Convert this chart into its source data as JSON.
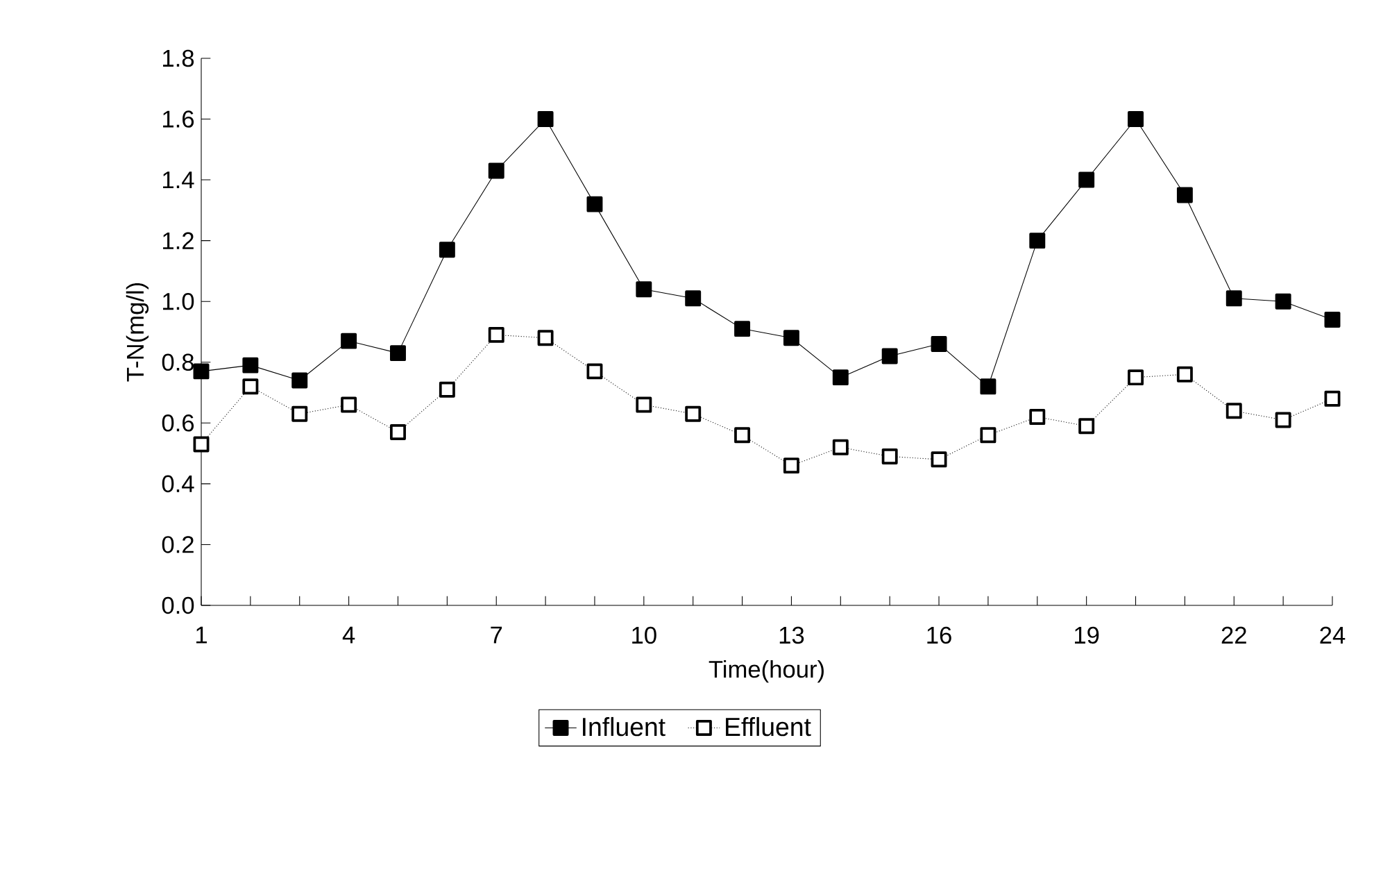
{
  "chart_data": {
    "type": "line",
    "xlabel": "Time(hour)",
    "ylabel": "T-N(mg/l)",
    "x": [
      1,
      2,
      3,
      4,
      5,
      6,
      7,
      8,
      9,
      10,
      11,
      12,
      13,
      14,
      15,
      16,
      17,
      18,
      19,
      20,
      21,
      22,
      23,
      24
    ],
    "series": [
      {
        "name": "Influent",
        "color": "#000000",
        "marker": "square",
        "line_style": "solid",
        "values": [
          0.77,
          0.79,
          0.74,
          0.87,
          0.83,
          1.17,
          1.43,
          1.6,
          1.32,
          1.04,
          1.01,
          0.91,
          0.88,
          0.75,
          0.82,
          0.86,
          0.72,
          1.2,
          1.4,
          1.6,
          1.35,
          1.01,
          1.0,
          0.94
        ]
      },
      {
        "name": "Effluent",
        "color": "#000000",
        "marker": "square",
        "line_style": "dotted",
        "values": [
          0.53,
          0.72,
          0.63,
          0.66,
          0.57,
          0.71,
          0.89,
          0.88,
          0.77,
          0.66,
          0.63,
          0.56,
          0.46,
          0.52,
          0.49,
          0.48,
          0.56,
          0.62,
          0.59,
          0.75,
          0.76,
          0.64,
          0.61,
          0.68
        ]
      }
    ],
    "xlim": [
      1,
      24
    ],
    "xticks": [
      1,
      {
        "value": 2,
        "label": null
      },
      {
        "value": 3,
        "label": null
      },
      4,
      {
        "value": 5,
        "label": null
      },
      {
        "value": 6,
        "label": null
      },
      7,
      {
        "value": 8,
        "label": null
      },
      {
        "value": 9,
        "label": null
      },
      10,
      {
        "value": 11,
        "label": null
      },
      {
        "value": 12,
        "label": null
      },
      13,
      {
        "value": 14,
        "label": null
      },
      {
        "value": 15,
        "label": null
      },
      16,
      {
        "value": 17,
        "label": null
      },
      {
        "value": 18,
        "label": null
      },
      19,
      {
        "value": 20,
        "label": null
      },
      {
        "value": 21,
        "label": null
      },
      22,
      {
        "value": 23,
        "label": null
      },
      24
    ],
    "ylim": [
      0,
      1.8
    ],
    "yticks": [
      {
        "value": 0,
        "label": "0.0"
      },
      0.2,
      0.4,
      0.6,
      0.8,
      {
        "value": 1.0,
        "label": "1.0"
      },
      1.2,
      1.4,
      1.6,
      1.8
    ],
    "grid": false,
    "legend": "bottom"
  }
}
